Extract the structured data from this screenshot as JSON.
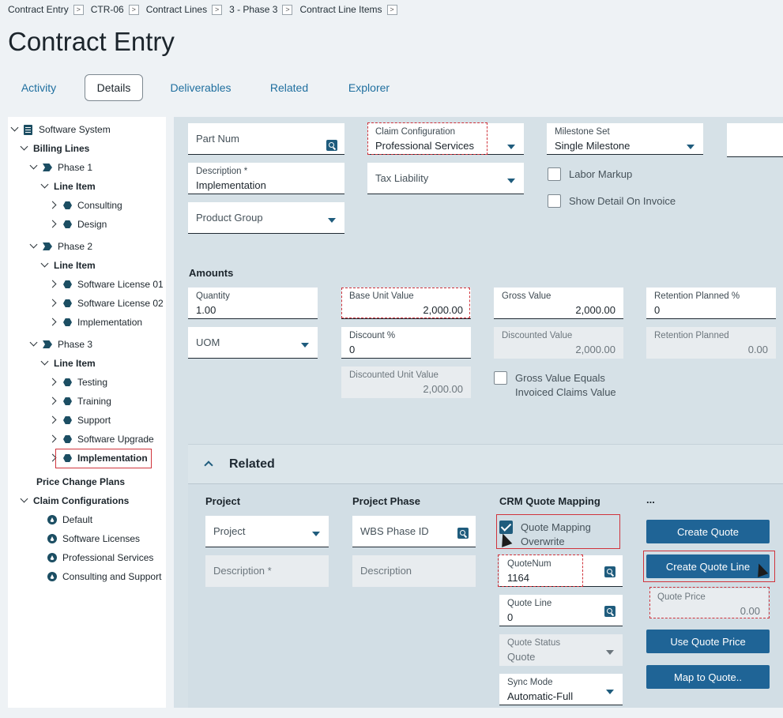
{
  "breadcrumb": [
    "Contract Entry",
    "CTR-06",
    "Contract Lines",
    "3 - Phase 3",
    "Contract Line Items"
  ],
  "page_title": "Contract Entry",
  "tabs": [
    "Activity",
    "Details",
    "Deliverables",
    "Related",
    "Explorer"
  ],
  "tree": {
    "root": "Software System",
    "billing_lines": "Billing Lines",
    "phase1": "Phase 1",
    "phase2": "Phase 2",
    "phase3": "Phase 3",
    "line_item": "Line Item",
    "p1_items": [
      "Consulting",
      "Design"
    ],
    "p2_items": [
      "Software License 01",
      "Software License 02",
      "Implementation"
    ],
    "p3_items": [
      "Testing",
      "Training",
      "Support",
      "Software Upgrade",
      "Implementation"
    ],
    "price_change_plans": "Price Change Plans",
    "claim_configurations": "Claim Configurations",
    "claim_items": [
      "Default",
      "Software Licenses",
      "Professional Services",
      "Consulting and Support"
    ]
  },
  "form": {
    "part_num": "Part Num",
    "claim_config_label": "Claim Configuration",
    "claim_config_value": "Professional Services",
    "milestone_set_label": "Milestone Set",
    "milestone_set_value": "Single Milestone",
    "description_label": "Description *",
    "description_value": "Implementation",
    "tax_liability": "Tax Liability",
    "labor_markup": "Labor Markup",
    "show_detail": "Show Detail On Invoice",
    "product_group": "Product Group"
  },
  "amounts": {
    "heading": "Amounts",
    "quantity_label": "Quantity",
    "quantity_value": "1.00",
    "base_unit_label": "Base Unit Value",
    "base_unit_value": "2,000.00",
    "gross_label": "Gross Value",
    "gross_value": "2,000.00",
    "retention_pct_label": "Retention Planned %",
    "retention_pct_value": "0",
    "uom": "UOM",
    "discount_pct_label": "Discount %",
    "discount_pct_value": "0",
    "discounted_value_label": "Discounted Value",
    "discounted_value": "2,000.00",
    "retention_planned_label": "Retention Planned",
    "retention_planned_value": "0.00",
    "discounted_unit_label": "Discounted Unit Value",
    "discounted_unit_value": "2,000.00",
    "gross_equals": "Gross Value Equals Invoiced Claims Value"
  },
  "related": {
    "heading": "Related",
    "project_h": "Project",
    "project_phase_h": "Project Phase",
    "crm_h": "CRM Quote Mapping",
    "more_h": "...",
    "project_field": "Project",
    "wbs_phase": "WBS Phase ID",
    "description_req": "Description *",
    "description": "Description",
    "quote_mapping": "Quote Mapping Overwrite",
    "quotenum_label": "QuoteNum",
    "quotenum_value": "1164",
    "quote_line_label": "Quote Line",
    "quote_line_value": "0",
    "quote_status_label": "Quote Status",
    "quote_status_value": "Quote",
    "sync_mode_label": "Sync Mode",
    "sync_mode_value": "Automatic-Full",
    "create_quote": "Create Quote",
    "create_quote_line": "Create Quote Line",
    "quote_price_label": "Quote Price",
    "quote_price_value": "0.00",
    "use_quote_price": "Use Quote Price",
    "map_to_quote": "Map to Quote.."
  }
}
